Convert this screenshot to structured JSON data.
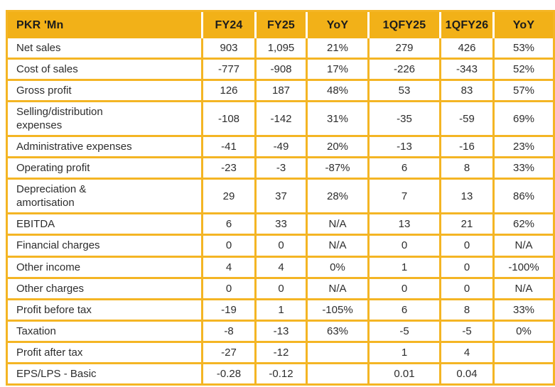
{
  "table": {
    "columns": [
      "PKR 'Mn",
      "FY24",
      "FY25",
      "YoY",
      "1QFY25",
      "1QFY26",
      "YoY"
    ],
    "rows": [
      {
        "label": "Net sales",
        "values": [
          "903",
          "1,095",
          "21%",
          "279",
          "426",
          "53%"
        ]
      },
      {
        "label": "Cost of sales",
        "values": [
          "-777",
          "-908",
          "17%",
          "-226",
          "-343",
          "52%"
        ]
      },
      {
        "label": "Gross profit",
        "values": [
          "126",
          "187",
          "48%",
          "53",
          "83",
          "57%"
        ]
      },
      {
        "label": "Selling/distribution\nexpenses",
        "values": [
          "-108",
          "-142",
          "31%",
          "-35",
          "-59",
          "69%"
        ]
      },
      {
        "label": "Administrative expenses",
        "values": [
          "-41",
          "-49",
          "20%",
          "-13",
          "-16",
          "23%"
        ]
      },
      {
        "label": "Operating profit",
        "values": [
          "-23",
          "-3",
          "-87%",
          "6",
          "8",
          "33%"
        ]
      },
      {
        "label": "Depreciation &\namortisation",
        "values": [
          "29",
          "37",
          "28%",
          "7",
          "13",
          "86%"
        ]
      },
      {
        "label": "EBITDA",
        "values": [
          "6",
          "33",
          "N/A",
          "13",
          "21",
          "62%"
        ]
      },
      {
        "label": "Financial charges",
        "values": [
          "0",
          "0",
          "N/A",
          "0",
          "0",
          "N/A"
        ]
      },
      {
        "label": "Other income",
        "values": [
          "4",
          "4",
          "0%",
          "1",
          "0",
          "-100%"
        ]
      },
      {
        "label": "Other charges",
        "values": [
          "0",
          "0",
          "N/A",
          "0",
          "0",
          "N/A"
        ]
      },
      {
        "label": "Profit before tax",
        "values": [
          "-19",
          "1",
          "-105%",
          "6",
          "8",
          "33%"
        ]
      },
      {
        "label": "Taxation",
        "values": [
          "-8",
          "-13",
          "63%",
          "-5",
          "-5",
          "0%"
        ]
      },
      {
        "label": "Profit after tax",
        "values": [
          "-27",
          "-12",
          "",
          "1",
          "4",
          ""
        ]
      },
      {
        "label": "EPS/LPS - Basic",
        "values": [
          "-0.28",
          "-0.12",
          "",
          "0.01",
          "0.04",
          ""
        ]
      }
    ]
  },
  "colors": {
    "header_bg": "#F2B118",
    "border": "#F4B524",
    "body_text": "#2D2D2D",
    "header_text": "#1C1C1C"
  }
}
